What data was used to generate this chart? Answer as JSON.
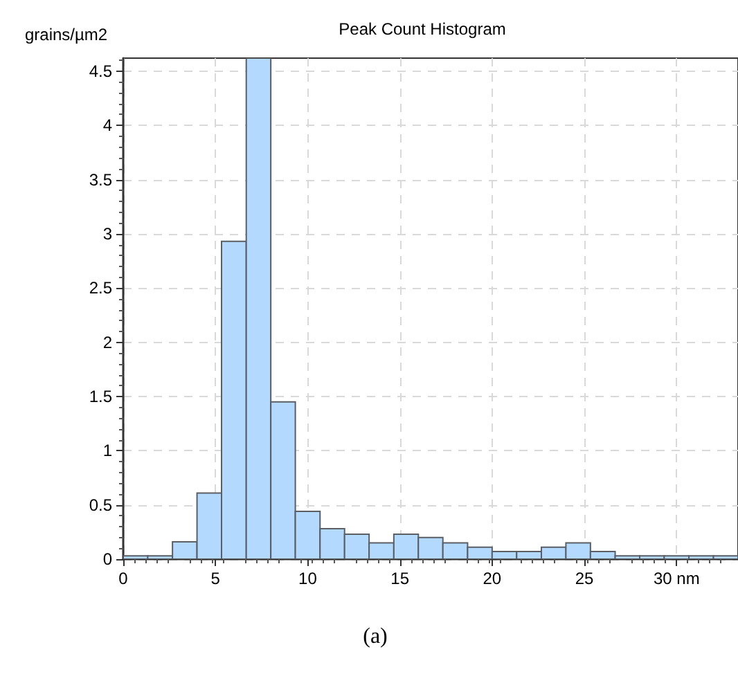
{
  "chart_data": {
    "type": "histogram",
    "title": "Peak Count Histogram",
    "ylabel": "grains/µm2",
    "annotations": [
      "(a)"
    ],
    "bins": [
      0,
      1.33,
      2.67,
      4,
      5.33,
      6.67,
      8,
      9.33,
      10.67,
      12,
      13.33,
      14.67,
      16,
      17.33,
      18.67,
      20,
      21.33,
      22.67,
      24,
      25.33,
      26.67,
      28,
      29.33,
      30.67,
      32,
      33.33
    ],
    "values": [
      0.03,
      0.03,
      0.16,
      0.61,
      2.93,
      4.62,
      1.45,
      0.44,
      0.28,
      0.23,
      0.15,
      0.23,
      0.2,
      0.15,
      0.11,
      0.07,
      0.07,
      0.11,
      0.15,
      0.07,
      0.03,
      0.03,
      0.03,
      0.03,
      0.03
    ],
    "color": "#b3d9ff",
    "xlim": [
      0,
      33.33
    ],
    "xticks": [
      0,
      5,
      10,
      15,
      20,
      25,
      {
        "value": 30,
        "label": "30 nm"
      }
    ],
    "ylim": [
      0,
      4.62
    ],
    "yticks": [
      0,
      0.5,
      1,
      1.5,
      2,
      2.5,
      3,
      3.5,
      4,
      4.5
    ],
    "grid": true
  }
}
